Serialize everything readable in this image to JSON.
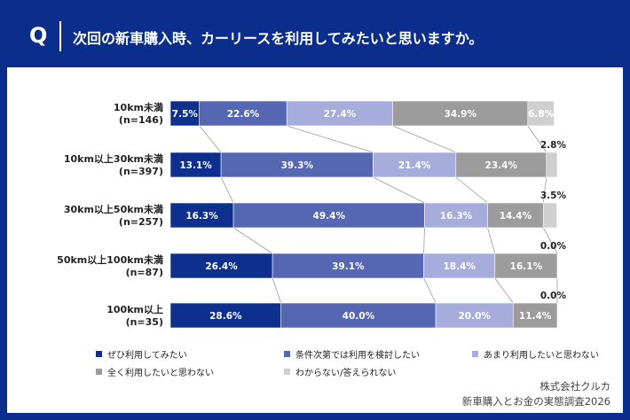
{
  "header": {
    "q_mark": "Q",
    "question": "次回の新車購入時、カーリースを利用してみたいと思いますか。"
  },
  "colors": {
    "header_bg": "#0b2e8c",
    "series": [
      "#0d2f8e",
      "#5566b2",
      "#a6addc",
      "#9c9c9c",
      "#cfcfcf"
    ]
  },
  "chart_data": {
    "type": "bar",
    "orientation": "horizontal",
    "stacked": "percent",
    "categories": [
      [
        "10km未満",
        "(n=146)"
      ],
      [
        "10km以上30km未満",
        "(n=397)"
      ],
      [
        "30km以上50km未満",
        "(n=257)"
      ],
      [
        "50km以上100km未満",
        "(n=87)"
      ],
      [
        "100km以上",
        "(n=35)"
      ]
    ],
    "series": [
      {
        "name": "ぜひ利用してみたい",
        "values": [
          7.5,
          13.1,
          16.3,
          26.4,
          28.6
        ]
      },
      {
        "name": "条件次第では利用を検討したい",
        "values": [
          22.6,
          39.3,
          49.4,
          39.1,
          40.0
        ]
      },
      {
        "name": "あまり利用したいと思わない",
        "values": [
          27.4,
          21.4,
          16.3,
          18.4,
          20.0
        ]
      },
      {
        "name": "全く利用したいと思わない",
        "values": [
          34.9,
          23.4,
          14.4,
          16.1,
          11.4
        ]
      },
      {
        "name": "わからない/答えられない",
        "values": [
          6.8,
          2.8,
          3.5,
          0.0,
          0.0
        ]
      }
    ],
    "value_labels": [
      [
        "7.5%",
        "22.6%",
        "27.4%",
        "34.9%",
        "6.8%"
      ],
      [
        "13.1%",
        "39.3%",
        "21.4%",
        "23.4%",
        "2.8%"
      ],
      [
        "16.3%",
        "49.4%",
        "16.3%",
        "14.4%",
        "3.5%"
      ],
      [
        "26.4%",
        "39.1%",
        "18.4%",
        "16.1%",
        "0.0%"
      ],
      [
        "28.6%",
        "40.0%",
        "20.0%",
        "11.4%",
        "0.0%"
      ]
    ],
    "xlim": [
      0,
      100
    ],
    "legend_position": "bottom"
  },
  "credit": {
    "company": "株式会社クルカ",
    "survey": "新車購入とお金の実態調査2026"
  }
}
